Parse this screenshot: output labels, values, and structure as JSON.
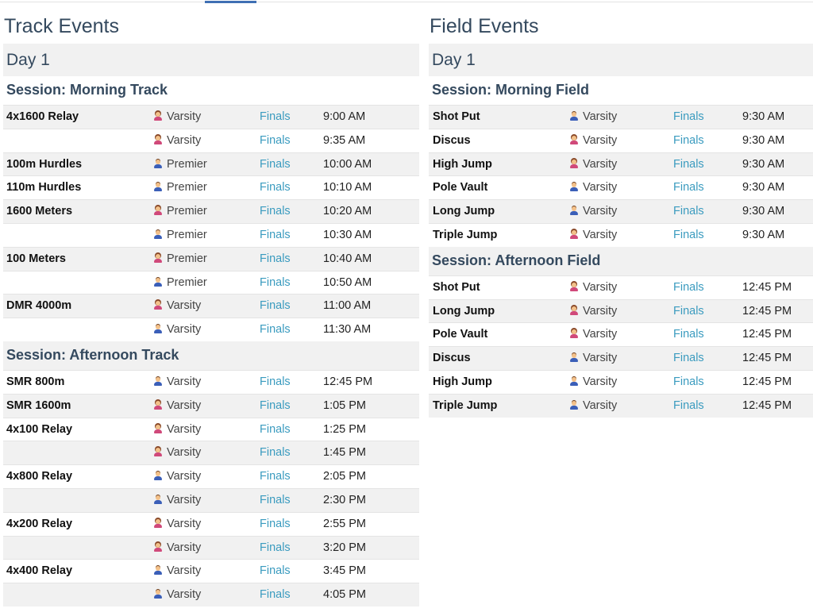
{
  "columns": [
    {
      "title": "Track Events",
      "days": [
        {
          "label": "Day 1",
          "sessions": [
            {
              "label": "Session: Morning Track",
              "rows": [
                [
                  "4x1600 Relay",
                  "Varsity",
                  "Finals",
                  "9:00 AM"
                ],
                [
                  null,
                  "Varsity",
                  "Finals",
                  "9:35 AM"
                ],
                [
                  "100m Hurdles",
                  "Premier",
                  "Finals",
                  "10:00 AM"
                ],
                [
                  "110m Hurdles",
                  "Premier",
                  "Finals",
                  "10:10 AM"
                ],
                [
                  "1600 Meters",
                  "Premier",
                  "Finals",
                  "10:20 AM"
                ],
                [
                  null,
                  "Premier",
                  "Finals",
                  "10:30 AM"
                ],
                [
                  "100 Meters",
                  "Premier",
                  "Finals",
                  "10:40 AM"
                ],
                [
                  null,
                  "Premier",
                  "Finals",
                  "10:50 AM"
                ],
                [
                  "DMR 4000m",
                  "Varsity",
                  "Finals",
                  "11:00 AM"
                ],
                [
                  null,
                  "Varsity",
                  "Finals",
                  "11:30 AM"
                ]
              ]
            },
            {
              "label": "Session: Afternoon Track",
              "rows": [
                [
                  "SMR 800m",
                  "Varsity",
                  "Finals",
                  "12:45 PM"
                ],
                [
                  "SMR 1600m",
                  "Varsity",
                  "Finals",
                  "1:05 PM"
                ],
                [
                  "4x100 Relay",
                  "Varsity",
                  "Finals",
                  "1:25 PM"
                ],
                [
                  null,
                  "Varsity",
                  "Finals",
                  "1:45 PM"
                ],
                [
                  "4x800 Relay",
                  "Varsity",
                  "Finals",
                  "2:05 PM"
                ],
                [
                  null,
                  "Varsity",
                  "Finals",
                  "2:30 PM"
                ],
                [
                  "4x200 Relay",
                  "Varsity",
                  "Finals",
                  "2:55 PM"
                ],
                [
                  null,
                  "Varsity",
                  "Finals",
                  "3:20 PM"
                ],
                [
                  "4x400 Relay",
                  "Varsity",
                  "Finals",
                  "3:45 PM"
                ],
                [
                  null,
                  "Varsity",
                  "Finals",
                  "4:05 PM"
                ]
              ]
            }
          ]
        }
      ]
    },
    {
      "title": "Field Events",
      "days": [
        {
          "label": "Day 1",
          "sessions": [
            {
              "label": "Session: Morning Field",
              "rows": [
                [
                  "Shot Put",
                  "Varsity",
                  "Finals",
                  "9:30 AM"
                ],
                [
                  "Discus",
                  "Varsity",
                  "Finals",
                  "9:30 AM"
                ],
                [
                  "High Jump",
                  "Varsity",
                  "Finals",
                  "9:30 AM"
                ],
                [
                  "Pole Vault",
                  "Varsity",
                  "Finals",
                  "9:30 AM"
                ],
                [
                  "Long Jump",
                  "Varsity",
                  "Finals",
                  "9:30 AM"
                ],
                [
                  "Triple Jump",
                  "Varsity",
                  "Finals",
                  "9:30 AM"
                ]
              ]
            },
            {
              "label": "Session: Afternoon Field",
              "rows": [
                [
                  "Shot Put",
                  "Varsity",
                  "Finals",
                  "12:45 PM"
                ],
                [
                  "Long Jump",
                  "Varsity",
                  "Finals",
                  "12:45 PM"
                ],
                [
                  "Pole Vault",
                  "Varsity",
                  "Finals",
                  "12:45 PM"
                ],
                [
                  "Discus",
                  "Varsity",
                  "Finals",
                  "12:45 PM"
                ],
                [
                  "High Jump",
                  "Varsity",
                  "Finals",
                  "12:45 PM"
                ],
                [
                  "Triple Jump",
                  "Varsity",
                  "Finals",
                  "12:45 PM"
                ]
              ]
            }
          ]
        }
      ]
    }
  ]
}
